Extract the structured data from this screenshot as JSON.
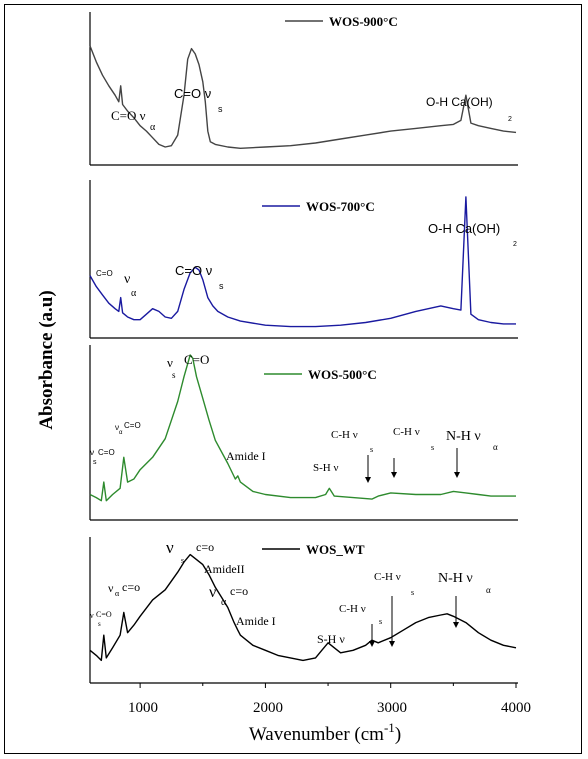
{
  "figure": {
    "ylabel": "Absorbance (a.u)",
    "xlabel_main": "Wavenumber (cm",
    "xlabel_sup": "-1",
    "xlabel_close": ")",
    "x_ticks": [
      "1000",
      "2000",
      "3000",
      "4000"
    ]
  },
  "chart_data": [
    {
      "type": "line",
      "legend": "WOS-900°C",
      "color": "#444444",
      "xlim": [
        600,
        4000
      ],
      "series": [
        {
          "name": "WOS-900°C",
          "x": [
            600,
            650,
            700,
            750,
            800,
            830,
            845,
            860,
            900,
            950,
            1000,
            1050,
            1100,
            1150,
            1200,
            1250,
            1300,
            1350,
            1380,
            1410,
            1440,
            1470,
            1500,
            1520,
            1540,
            1560,
            1600,
            1700,
            1800,
            2000,
            2200,
            2400,
            2600,
            2800,
            3000,
            3200,
            3400,
            3500,
            3560,
            3600,
            3640,
            3700,
            3800,
            3900,
            4000
          ],
          "y": [
            0.82,
            0.7,
            0.6,
            0.52,
            0.45,
            0.4,
            0.52,
            0.38,
            0.33,
            0.28,
            0.22,
            0.18,
            0.13,
            0.08,
            0.06,
            0.07,
            0.15,
            0.45,
            0.72,
            0.8,
            0.76,
            0.68,
            0.55,
            0.4,
            0.18,
            0.1,
            0.08,
            0.06,
            0.05,
            0.06,
            0.07,
            0.09,
            0.12,
            0.15,
            0.18,
            0.2,
            0.22,
            0.23,
            0.26,
            0.45,
            0.24,
            0.22,
            0.2,
            0.18,
            0.17
          ]
        }
      ],
      "annotations": [
        "C=O ν",
        "α",
        "C=O ν",
        "s",
        "O-H Ca(OH)",
        "2"
      ]
    },
    {
      "type": "line",
      "legend": "WOS-700°C",
      "color": "#1a1aa0",
      "xlim": [
        600,
        4000
      ],
      "series": [
        {
          "name": "WOS-700°C",
          "x": [
            600,
            650,
            700,
            750,
            800,
            830,
            845,
            860,
            900,
            950,
            1000,
            1050,
            1100,
            1150,
            1200,
            1250,
            1300,
            1350,
            1400,
            1440,
            1470,
            1500,
            1540,
            1580,
            1620,
            1700,
            1800,
            2000,
            2200,
            2400,
            2600,
            2800,
            3000,
            3200,
            3400,
            3500,
            3560,
            3600,
            3640,
            3700,
            3800,
            3900,
            4000
          ],
          "y": [
            0.38,
            0.3,
            0.24,
            0.18,
            0.14,
            0.12,
            0.22,
            0.11,
            0.08,
            0.06,
            0.06,
            0.1,
            0.14,
            0.12,
            0.08,
            0.07,
            0.12,
            0.28,
            0.4,
            0.44,
            0.42,
            0.35,
            0.22,
            0.16,
            0.12,
            0.08,
            0.05,
            0.02,
            0.01,
            0.01,
            0.02,
            0.04,
            0.07,
            0.12,
            0.16,
            0.14,
            0.13,
            0.95,
            0.1,
            0.06,
            0.04,
            0.03,
            0.03
          ]
        }
      ],
      "annotations": [
        "C=O",
        "ν",
        "α",
        "C=O ν",
        "s",
        "O-H Ca(OH)",
        "2"
      ]
    },
    {
      "type": "line",
      "legend": "WOS-500°C",
      "color": "#2e8b2e",
      "xlim": [
        600,
        4000
      ],
      "series": [
        {
          "name": "WOS-500°C",
          "x": [
            600,
            650,
            690,
            710,
            730,
            780,
            840,
            870,
            900,
            950,
            1000,
            1100,
            1200,
            1300,
            1350,
            1400,
            1420,
            1450,
            1500,
            1550,
            1600,
            1700,
            1760,
            1780,
            1800,
            1900,
            2000,
            2200,
            2400,
            2480,
            2510,
            2550,
            2700,
            2850,
            2900,
            3000,
            3200,
            3400,
            3500,
            3600,
            3700,
            3800,
            4000
          ],
          "y": [
            0.1,
            0.08,
            0.06,
            0.18,
            0.06,
            0.1,
            0.14,
            0.34,
            0.18,
            0.2,
            0.26,
            0.34,
            0.46,
            0.7,
            0.86,
            1.0,
            0.98,
            0.86,
            0.72,
            0.58,
            0.45,
            0.3,
            0.2,
            0.22,
            0.18,
            0.12,
            0.1,
            0.08,
            0.08,
            0.1,
            0.14,
            0.09,
            0.08,
            0.07,
            0.09,
            0.11,
            0.1,
            0.1,
            0.12,
            0.11,
            0.1,
            0.09,
            0.09
          ]
        }
      ],
      "annotations": [
        "ν",
        "s",
        "C=O",
        "ν",
        "s",
        "C=O",
        "ν",
        "α",
        "C=O",
        "Amide I",
        "S-H ν",
        "C-H ν",
        "s",
        "C-H ν",
        "s",
        "N-H ν",
        "α"
      ]
    },
    {
      "type": "line",
      "legend": "WOS_WT",
      "color": "#000000",
      "xlim": [
        600,
        4000
      ],
      "series": [
        {
          "name": "WOS_WT",
          "x": [
            600,
            650,
            690,
            710,
            730,
            780,
            840,
            870,
            900,
            950,
            1000,
            1100,
            1200,
            1300,
            1350,
            1400,
            1450,
            1500,
            1550,
            1600,
            1650,
            1700,
            1750,
            1780,
            1800,
            1900,
            2000,
            2100,
            2200,
            2300,
            2400,
            2450,
            2500,
            2550,
            2600,
            2700,
            2800,
            2850,
            2900,
            3000,
            3100,
            3200,
            3300,
            3400,
            3450,
            3500,
            3600,
            3700,
            3800,
            3900,
            4000
          ],
          "y": [
            0.18,
            0.14,
            0.1,
            0.3,
            0.12,
            0.2,
            0.3,
            0.48,
            0.32,
            0.38,
            0.45,
            0.58,
            0.66,
            0.8,
            0.88,
            0.94,
            0.9,
            0.86,
            0.78,
            0.68,
            0.6,
            0.52,
            0.4,
            0.34,
            0.3,
            0.22,
            0.18,
            0.14,
            0.12,
            0.1,
            0.12,
            0.18,
            0.24,
            0.2,
            0.16,
            0.18,
            0.22,
            0.26,
            0.24,
            0.28,
            0.34,
            0.4,
            0.44,
            0.46,
            0.47,
            0.45,
            0.4,
            0.32,
            0.26,
            0.22,
            0.2
          ]
        }
      ],
      "annotations": [
        "ν",
        "s",
        "C=O",
        "ν",
        "α",
        "c=o",
        "ν",
        "s",
        "c=o",
        "AmideII",
        "ν",
        "α",
        "c=o",
        "Amide I",
        "S-H ν",
        "C-H ν",
        "s",
        "C-H ν",
        "s",
        "N-H ν",
        "α"
      ]
    }
  ]
}
